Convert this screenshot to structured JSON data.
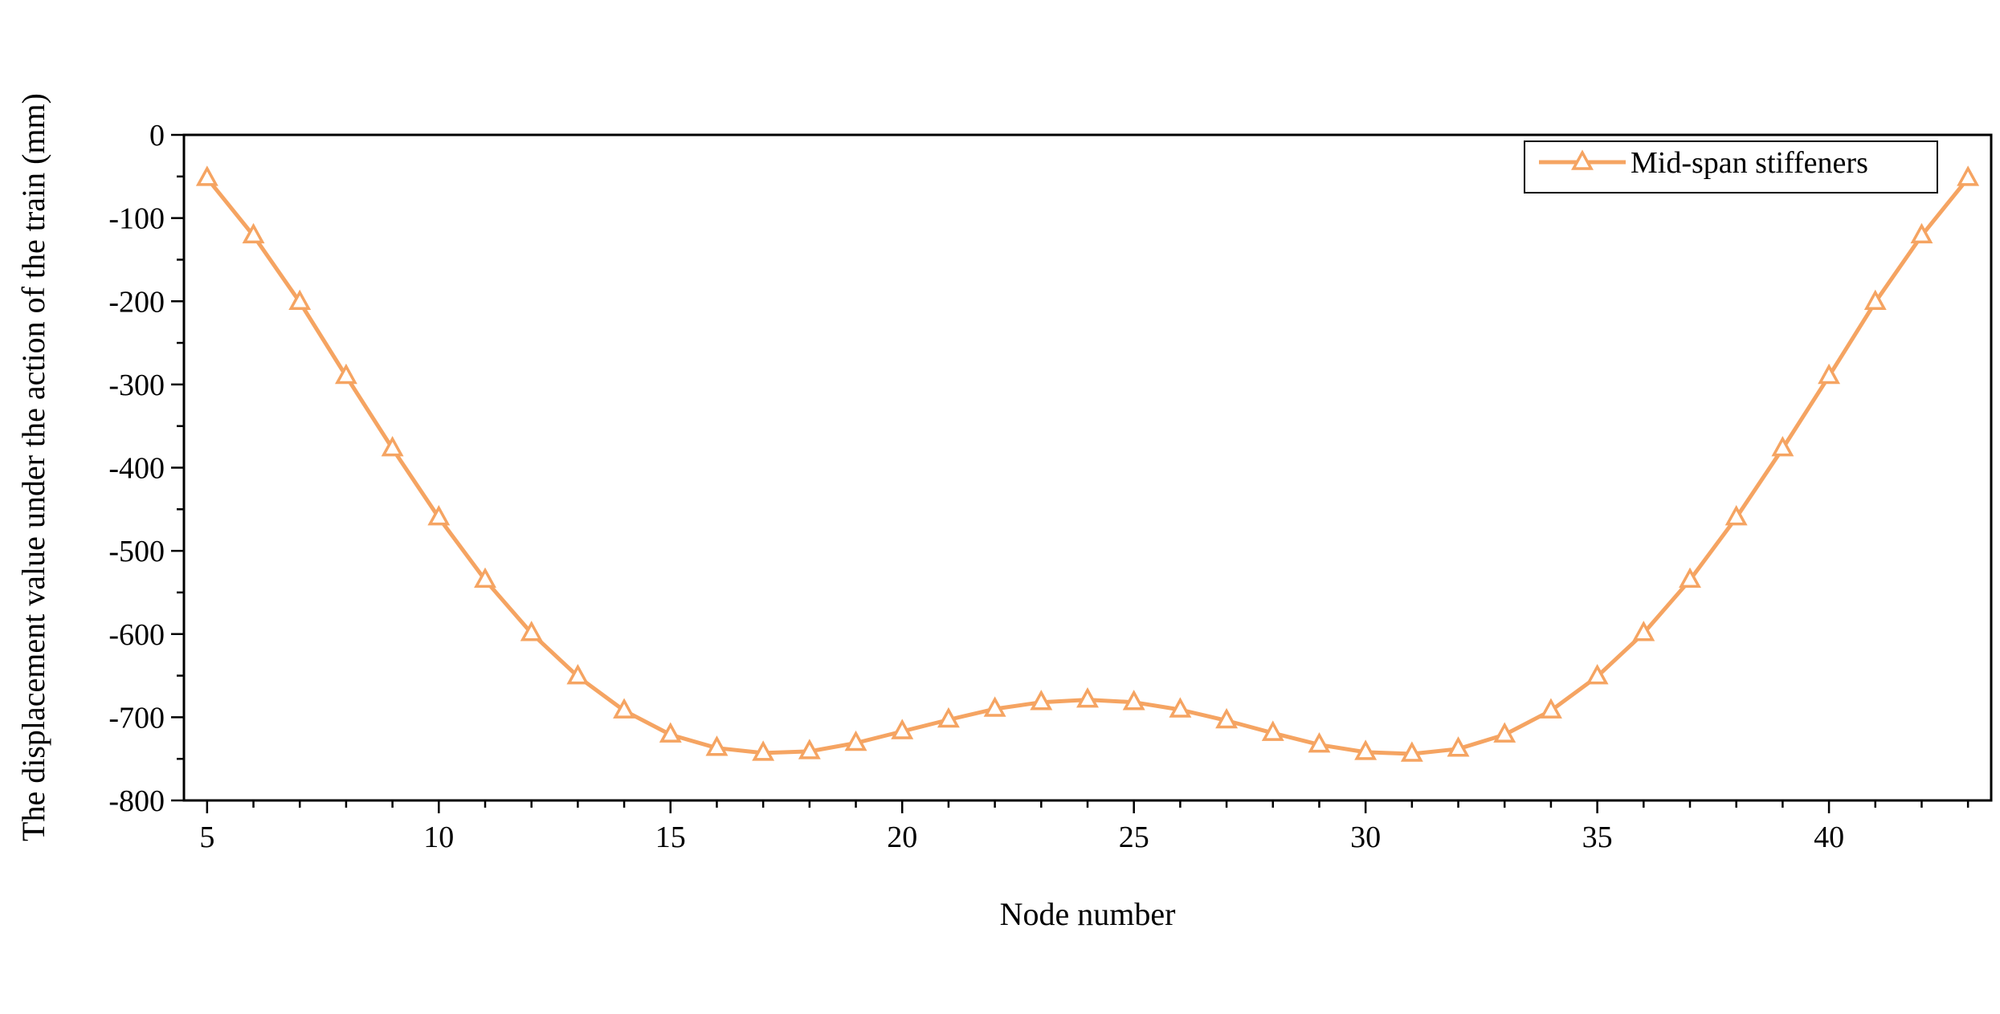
{
  "chart_data": {
    "type": "line",
    "xlabel": "Node number",
    "ylabel": "The displacement value under the action of the train (mm)",
    "xlim": [
      4.5,
      43.5
    ],
    "ylim": [
      -800,
      0
    ],
    "x_ticks": [
      5,
      10,
      15,
      20,
      25,
      30,
      35,
      40
    ],
    "y_ticks": [
      0,
      -100,
      -200,
      -300,
      -400,
      -500,
      -600,
      -700,
      -800
    ],
    "legend_position": "top-right",
    "grid": false,
    "marker": "open-triangle",
    "series": [
      {
        "name": "Mid-span stiffeners",
        "color": "#F5A462",
        "x": [
          5,
          6,
          7,
          8,
          9,
          10,
          11,
          12,
          13,
          14,
          15,
          16,
          17,
          18,
          19,
          20,
          21,
          22,
          23,
          24,
          25,
          26,
          27,
          28,
          29,
          30,
          31,
          32,
          33,
          34,
          35,
          36,
          37,
          38,
          39,
          40,
          41,
          42,
          43
        ],
        "y": [
          -52,
          -121,
          -201,
          -290,
          -377,
          -460,
          -535,
          -599,
          -651,
          -692,
          -721,
          -737,
          -743,
          -741,
          -731,
          -717,
          -703,
          -690,
          -682,
          -679,
          -682,
          -691,
          -704,
          -719,
          -733,
          -742,
          -744,
          -738,
          -721,
          -692,
          -651,
          -599,
          -535,
          -460,
          -377,
          -290,
          -201,
          -121,
          -52
        ]
      }
    ]
  }
}
